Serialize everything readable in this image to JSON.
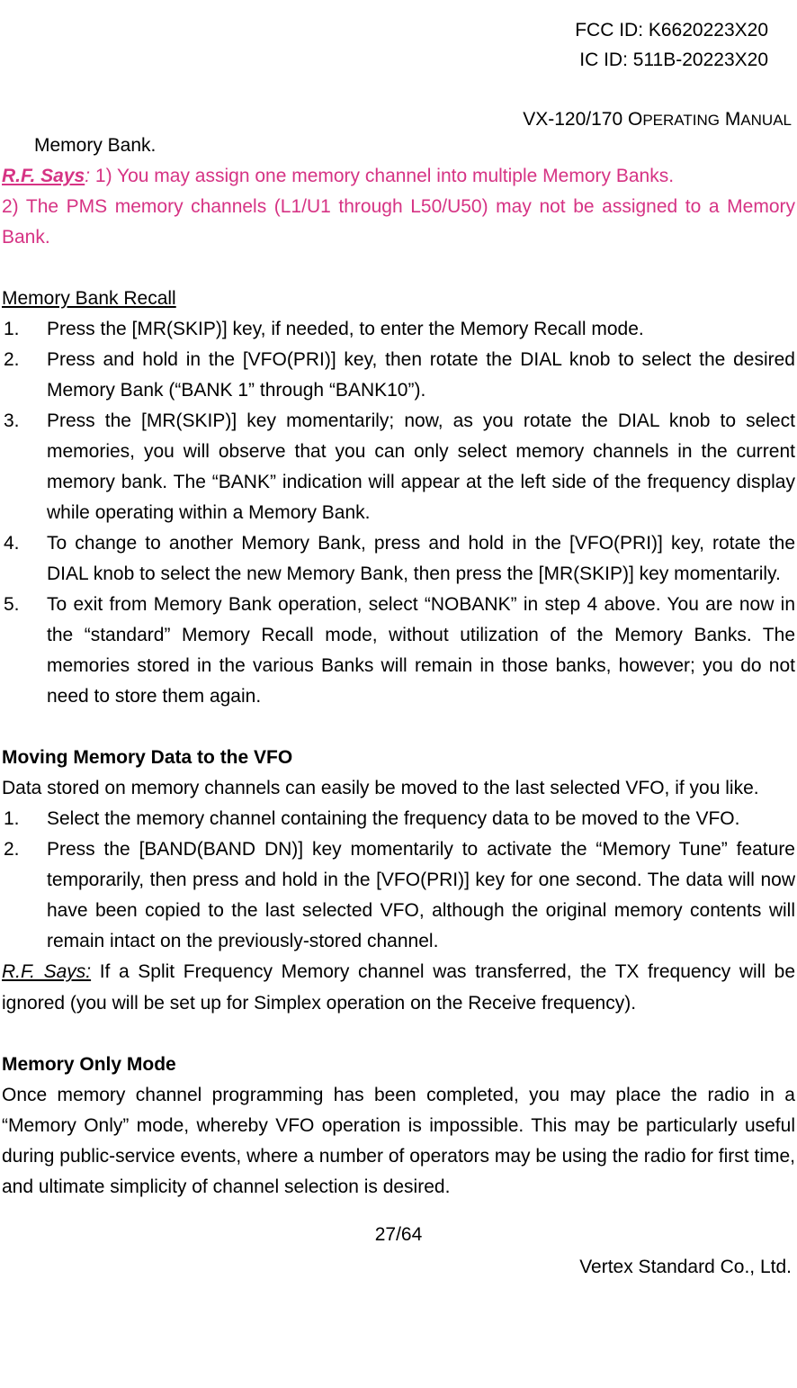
{
  "colors": {
    "text": "#000000",
    "magenta": "#d63384",
    "background": "#ffffff"
  },
  "typography": {
    "body_font": "Arial",
    "body_size_pt": 16,
    "line_height": 1.62
  },
  "header": {
    "fcc": "FCC ID: K6620223X20",
    "ic": "IC ID: 511B-20223X20",
    "manual_title_prefix": "VX-120/170 O",
    "manual_title_sc1": "PERATING",
    "manual_title_mid": " M",
    "manual_title_sc2": "ANUAL"
  },
  "intro": {
    "memory_bank_line": "Memory Bank.",
    "rf_label": "R.F. Says",
    "rf_colon_italic": ":",
    "rf_note1": " 1) You may assign one memory channel into multiple Memory Banks.",
    "rf_note2": "2) The PMS memory channels (L1/U1 through L50/U50) may not be assigned to a Memory Bank."
  },
  "recall": {
    "heading": "Memory Bank Recall",
    "items": [
      "Press the [MR(SKIP)] key, if needed, to enter the Memory Recall mode.",
      "Press and hold in the [VFO(PRI)] key, then rotate the DIAL knob to select the desired Memory Bank (“BANK 1” through “BANK10”).",
      "Press the [MR(SKIP)] key momentarily; now, as you rotate the DIAL knob to select memories, you will observe that you can only select memory channels in the current memory bank. The “BANK” indication will appear at the left side of the frequency display while operating within a Memory Bank.",
      "To change to another Memory Bank, press and hold in the [VFO(PRI)] key, rotate the DIAL knob to select the new Memory Bank, then press the [MR(SKIP)] key momentarily.",
      "To exit from Memory Bank operation, select “NOBANK” in step 4 above. You are now in the “standard” Memory Recall mode, without utilization of the Memory Banks. The memories stored in the various Banks will remain in those banks, however; you do not need to store them again."
    ]
  },
  "moving": {
    "heading": "Moving Memory Data to the VFO",
    "intro": "Data stored on memory channels can easily be moved to the last selected VFO, if you like.",
    "items": [
      "Select the memory channel containing the frequency data to be moved to the VFO.",
      "Press the [BAND(BAND DN)] key momentarily to activate the “Memory Tune” feature temporarily, then press and hold in the [VFO(PRI)] key for one second. The data will now have been copied to the last selected VFO, although the original memory contents will remain intact on the previously-stored channel."
    ],
    "rf_label": "R.F. Says:",
    "rf_note": " If a Split Frequency Memory channel was transferred, the TX frequency will be ignored (you will be set up for Simplex operation on the Receive frequency)."
  },
  "memonly": {
    "heading": "Memory Only Mode",
    "para": "Once memory channel programming has been completed, you may place the radio in a “Memory Only” mode, whereby VFO operation is impossible. This may be particularly useful during public-service events, where a number of operators may be using the radio for first time, and ultimate simplicity of channel selection is desired."
  },
  "footer": {
    "page": "27/64",
    "company": "Vertex Standard Co., Ltd."
  }
}
